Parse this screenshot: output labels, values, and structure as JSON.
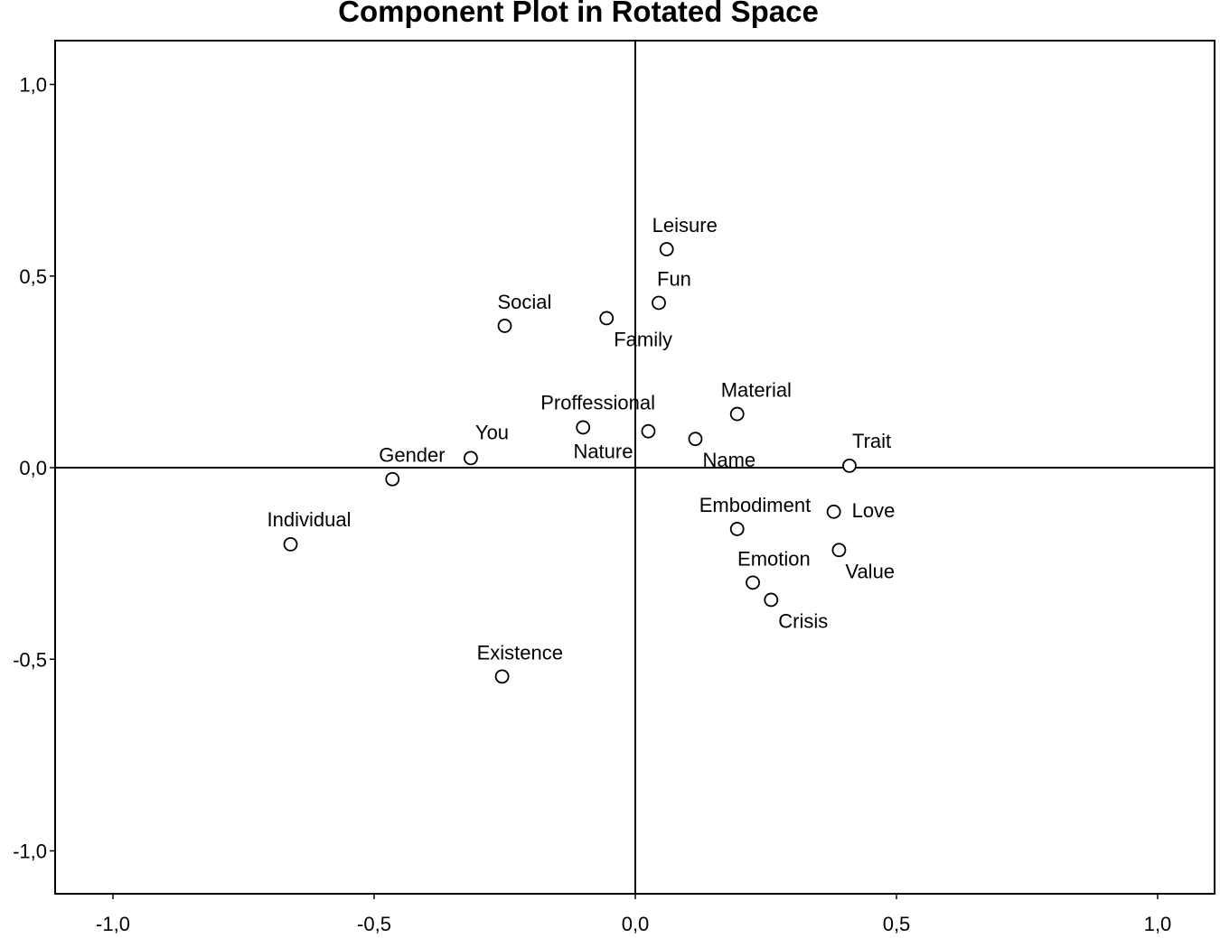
{
  "chart_data": {
    "type": "scatter",
    "title": "Component Plot in Rotated Space",
    "xlabel": "",
    "ylabel": "",
    "xlim": [
      -1.1,
      1.1
    ],
    "ylim": [
      -1.1,
      1.1
    ],
    "x_ticks": [
      -1.0,
      -0.5,
      0.0,
      0.5,
      1.0
    ],
    "y_ticks": [
      -1.0,
      -0.5,
      0.0,
      0.5,
      1.0
    ],
    "x_tick_labels": [
      "-1,0",
      "-0,5",
      "0,0",
      "0,5",
      "1,0"
    ],
    "y_tick_labels": [
      "-1,0",
      "-0,5",
      "0,0",
      "0,5",
      "1,0"
    ],
    "grid": false,
    "reference_lines": {
      "x": 0,
      "y": 0
    },
    "points": [
      {
        "label": "Leisure",
        "x": 0.06,
        "y": 0.57
      },
      {
        "label": "Fun",
        "x": 0.045,
        "y": 0.43
      },
      {
        "label": "Social",
        "x": -0.25,
        "y": 0.37
      },
      {
        "label": "Family",
        "x": -0.055,
        "y": 0.39
      },
      {
        "label": "Material",
        "x": 0.195,
        "y": 0.14
      },
      {
        "label": "Proffessional",
        "x": -0.1,
        "y": 0.105
      },
      {
        "label": "Nature",
        "x": 0.025,
        "y": 0.095
      },
      {
        "label": "Name",
        "x": 0.115,
        "y": 0.075
      },
      {
        "label": "You",
        "x": -0.315,
        "y": 0.025
      },
      {
        "label": "Gender",
        "x": -0.465,
        "y": -0.03
      },
      {
        "label": "Trait",
        "x": 0.41,
        "y": 0.005
      },
      {
        "label": "Individual",
        "x": -0.66,
        "y": -0.2
      },
      {
        "label": "Embodiment",
        "x": 0.195,
        "y": -0.16
      },
      {
        "label": "Love",
        "x": 0.38,
        "y": -0.115
      },
      {
        "label": "Value",
        "x": 0.39,
        "y": -0.215
      },
      {
        "label": "Emotion",
        "x": 0.225,
        "y": -0.3
      },
      {
        "label": "Crisis",
        "x": 0.26,
        "y": -0.345
      },
      {
        "label": "Existence",
        "x": -0.255,
        "y": -0.545
      }
    ],
    "colors": {
      "marker_stroke": "#000000",
      "marker_fill": "#ffffff",
      "axis": "#000000"
    }
  }
}
